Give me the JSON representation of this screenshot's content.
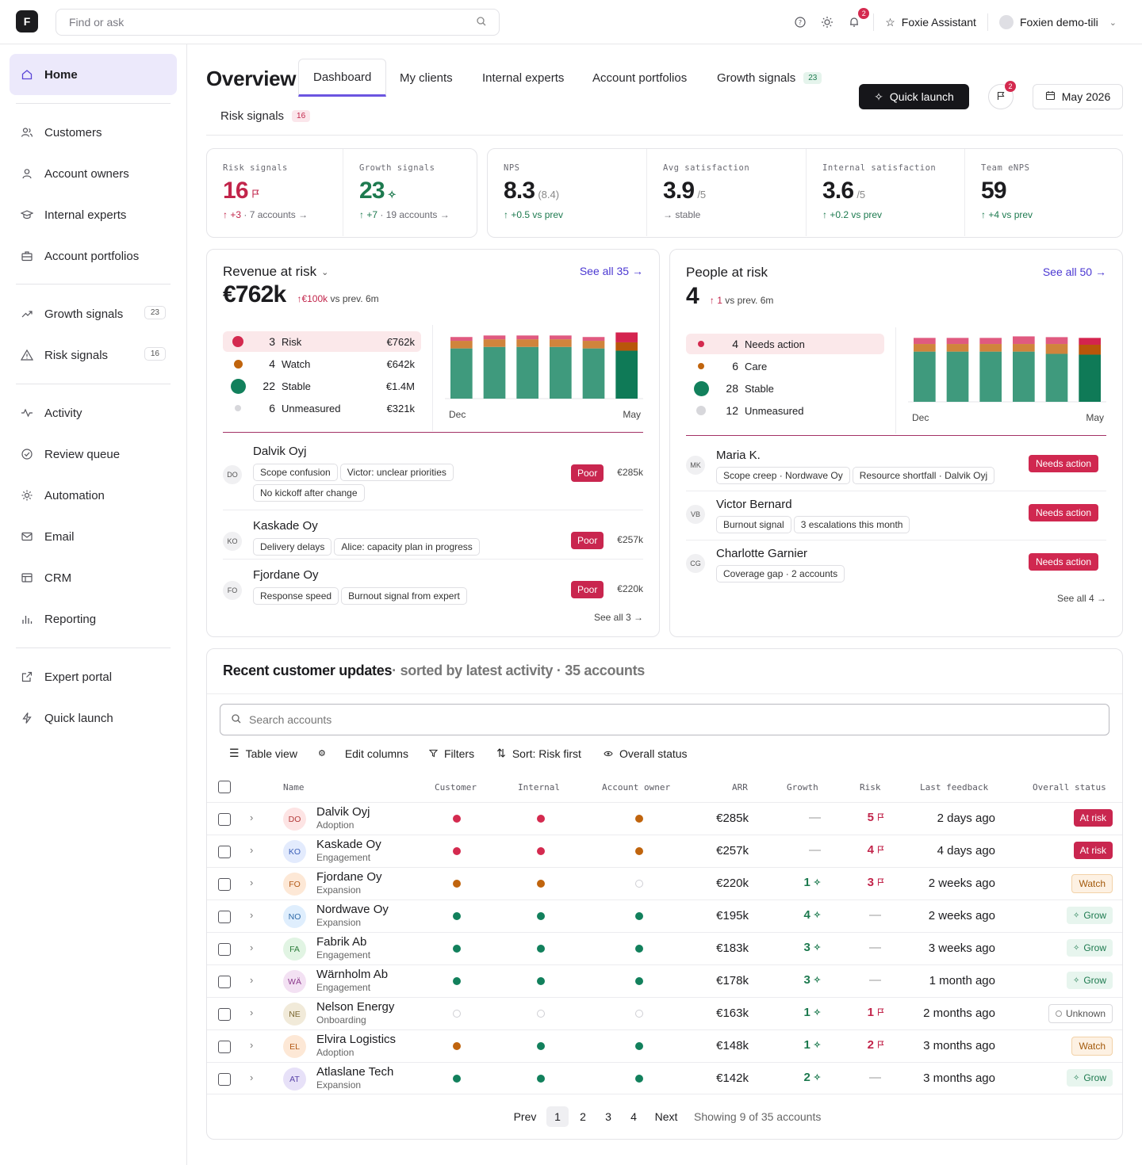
{
  "app": {
    "logo": "F",
    "search_placeholder": "Find or ask",
    "notif_count": "2",
    "assistant": "Foxie Assistant",
    "user": "Foxien demo-tili"
  },
  "sidebar": {
    "items": [
      {
        "label": "Home"
      },
      {
        "label": "Customers"
      },
      {
        "label": "Account owners"
      },
      {
        "label": "Internal experts"
      },
      {
        "label": "Account portfolios"
      },
      {
        "label": "Growth signals",
        "count": "23"
      },
      {
        "label": "Risk signals",
        "count": "16"
      },
      {
        "label": "Activity"
      },
      {
        "label": "Review queue"
      },
      {
        "label": "Automation"
      },
      {
        "label": "Email"
      },
      {
        "label": "CRM"
      },
      {
        "label": "Reporting"
      },
      {
        "label": "Expert portal"
      },
      {
        "label": "Quick launch"
      }
    ]
  },
  "header": {
    "title": "Overview",
    "tabs": [
      {
        "label": "Dashboard"
      },
      {
        "label": "My clients"
      },
      {
        "label": "Internal experts"
      },
      {
        "label": "Account portfolios"
      },
      {
        "label": "Growth signals",
        "count": "23"
      },
      {
        "label": "Risk signals",
        "count": "16"
      }
    ],
    "quick_launch": "Quick launch",
    "flag_count": "2",
    "date": "May 2026"
  },
  "kpis": [
    {
      "label": "Risk signals",
      "value": "16",
      "delta": "+3",
      "sub": "· 7 accounts →"
    },
    {
      "label": "Growth signals",
      "value": "23",
      "delta": "+7",
      "sub": "· 19 accounts →"
    },
    {
      "label": "NPS",
      "value": "8.3",
      "extra": "(8.4)",
      "sub": "+0.5 vs prev"
    },
    {
      "label": "Avg satisfaction",
      "value": "3.9",
      "extra": "/5",
      "sub": "→ stable"
    },
    {
      "label": "Internal satisfaction",
      "value": "3.6",
      "extra": "/5",
      "sub": "+0.2 vs prev"
    },
    {
      "label": "Team eNPS",
      "value": "59",
      "sub": "+4 vs prev"
    }
  ],
  "revenue": {
    "title": "Revenue at risk",
    "see_all": "See all 35 →",
    "value": "€762k",
    "delta": "€100k",
    "delta_sub": "vs prev. 6m",
    "legend": [
      {
        "count": "3",
        "label": "Risk",
        "value": "€762k",
        "color": "#d42a4f"
      },
      {
        "count": "4",
        "label": "Watch",
        "value": "€642k",
        "color": "#c0640d"
      },
      {
        "count": "22",
        "label": "Stable",
        "value": "€1.4M",
        "color": "#12805c"
      },
      {
        "count": "6",
        "label": "Unmeasured",
        "value": "€321k",
        "color": "#d7d7db"
      }
    ],
    "chart_data": {
      "type": "bar",
      "categories": [
        "Dec",
        "Jan",
        "Feb",
        "Mar",
        "Apr",
        "May"
      ],
      "x_labels": [
        "Dec",
        "May"
      ],
      "series": [
        {
          "name": "Stable",
          "color": "#3f9a7d",
          "values": [
            66,
            68,
            68,
            68,
            66,
            63
          ]
        },
        {
          "name": "Watch",
          "color": "#d0843c",
          "values": [
            10,
            10,
            10,
            10,
            10,
            11
          ]
        },
        {
          "name": "Risk",
          "color": "#e05a80",
          "values": [
            5,
            5,
            5,
            5,
            5,
            13
          ]
        }
      ]
    },
    "accounts": [
      {
        "initials": "DO",
        "name": "Dalvik Oyj",
        "tags": [
          "Scope confusion",
          "Victor: unclear priorities",
          "No kickoff after change"
        ],
        "status": "Poor",
        "value": "€285k"
      },
      {
        "initials": "KO",
        "name": "Kaskade Oy",
        "tags": [
          "Delivery delays",
          "Alice: capacity plan in progress"
        ],
        "status": "Poor",
        "value": "€257k"
      },
      {
        "initials": "FO",
        "name": "Fjordane Oy",
        "tags": [
          "Response speed",
          "Burnout signal from expert"
        ],
        "status": "Poor",
        "value": "€220k"
      }
    ],
    "footer": "See all 3 →"
  },
  "people": {
    "title": "People at risk",
    "see_all": "See all 50 →",
    "value": "4",
    "delta": "1",
    "delta_sub": "vs prev. 6m",
    "legend": [
      {
        "count": "4",
        "label": "Needs action",
        "color": "#d42a4f"
      },
      {
        "count": "6",
        "label": "Care",
        "color": "#c0640d"
      },
      {
        "count": "28",
        "label": "Stable",
        "color": "#12805c"
      },
      {
        "count": "12",
        "label": "Unmeasured",
        "color": "#d7d7db"
      }
    ],
    "chart_data": {
      "type": "bar",
      "categories": [
        "Dec",
        "Jan",
        "Feb",
        "Mar",
        "Apr",
        "May"
      ],
      "x_labels": [
        "Dec",
        "May"
      ],
      "series": [
        {
          "name": "Stable",
          "color": "#3f9a7d",
          "values": [
            66,
            66,
            66,
            66,
            63,
            62
          ]
        },
        {
          "name": "Care",
          "color": "#d0843c",
          "values": [
            10,
            10,
            10,
            10,
            13,
            13
          ]
        },
        {
          "name": "Needs action",
          "color": "#e05a80",
          "values": [
            8,
            8,
            8,
            10,
            9,
            9
          ]
        }
      ]
    },
    "persons": [
      {
        "initials": "MK",
        "name": "Maria K.",
        "tags": [
          "Scope creep · Nordwave Oy",
          "Resource shortfall · Dalvik Oyj"
        ],
        "status": "Needs action"
      },
      {
        "initials": "VB",
        "name": "Victor Bernard",
        "tags": [
          "Burnout signal",
          "3 escalations this month"
        ],
        "status": "Needs action"
      },
      {
        "initials": "CG",
        "name": "Charlotte Garnier",
        "tags": [
          "Coverage gap · 2 accounts"
        ],
        "status": "Needs action"
      }
    ],
    "footer": "See all 4 →"
  },
  "updates": {
    "title": "Recent customer updates",
    "subtitle": "· sorted by latest activity · 35 accounts",
    "search_placeholder": "Search accounts",
    "toolbar": {
      "view": "Table view",
      "edit": "Edit columns",
      "filters": "Filters",
      "sort": "Sort: Risk first",
      "status": "Overall status"
    },
    "columns": [
      "Name",
      "Customer",
      "Internal",
      "Account owner",
      "ARR",
      "Growth",
      "Risk",
      "Last feedback",
      "Overall status"
    ],
    "rows": [
      {
        "initials": "DO",
        "avbg": "#fde4e4",
        "avfg": "#b33a3a",
        "name": "Dalvik Oyj",
        "stage": "Adoption",
        "c": "r",
        "i": "r",
        "o": "o",
        "arr": "€285k",
        "growth": "—",
        "risk": "5",
        "last": "2 days ago",
        "status": "At risk",
        "st": "risk"
      },
      {
        "initials": "KO",
        "avbg": "#e3ebfd",
        "avfg": "#3b5fb8",
        "name": "Kaskade Oy",
        "stage": "Engagement",
        "c": "r",
        "i": "r",
        "o": "o",
        "arr": "€257k",
        "growth": "—",
        "risk": "4",
        "last": "4 days ago",
        "status": "At risk",
        "st": "risk"
      },
      {
        "initials": "FO",
        "avbg": "#fde8d6",
        "avfg": "#b35a18",
        "name": "Fjordane Oy",
        "stage": "Expansion",
        "c": "o",
        "i": "o",
        "o": "e",
        "arr": "€220k",
        "growth": "1",
        "risk": "3",
        "last": "2 weeks ago",
        "status": "Watch",
        "st": "watch"
      },
      {
        "initials": "NO",
        "avbg": "#dfeefd",
        "avfg": "#2f6aa8",
        "name": "Nordwave Oy",
        "stage": "Expansion",
        "c": "g",
        "i": "g",
        "o": "g",
        "arr": "€195k",
        "growth": "4",
        "risk": "—",
        "last": "2 weeks ago",
        "status": "Grow",
        "st": "grow"
      },
      {
        "initials": "FA",
        "avbg": "#e1f4e3",
        "avfg": "#2e7d3c",
        "name": "Fabrik Ab",
        "stage": "Engagement",
        "c": "g",
        "i": "g",
        "o": "g",
        "arr": "€183k",
        "growth": "3",
        "risk": "—",
        "last": "3 weeks ago",
        "status": "Grow",
        "st": "grow"
      },
      {
        "initials": "WÄ",
        "avbg": "#f3e1f3",
        "avfg": "#8c3a8c",
        "name": "Wärnholm Ab",
        "stage": "Engagement",
        "c": "g",
        "i": "g",
        "o": "g",
        "arr": "€178k",
        "growth": "3",
        "risk": "—",
        "last": "1 month ago",
        "status": "Grow",
        "st": "grow"
      },
      {
        "initials": "NE",
        "avbg": "#f1ead9",
        "avfg": "#7a6630",
        "name": "Nelson Energy",
        "stage": "Onboarding",
        "c": "e",
        "i": "e",
        "o": "e",
        "arr": "€163k",
        "growth": "1",
        "risk": "1",
        "last": "2 months ago",
        "status": "Unknown",
        "st": "unk"
      },
      {
        "initials": "EL",
        "avbg": "#fde8d6",
        "avfg": "#b35a18",
        "name": "Elvira Logistics",
        "stage": "Adoption",
        "c": "o",
        "i": "g",
        "o": "g",
        "arr": "€148k",
        "growth": "1",
        "risk": "2",
        "last": "3 months ago",
        "status": "Watch",
        "st": "watch"
      },
      {
        "initials": "AT",
        "avbg": "#e7e1f8",
        "avfg": "#5b45a8",
        "name": "Atlaslane Tech",
        "stage": "Expansion",
        "c": "g",
        "i": "g",
        "o": "g",
        "arr": "€142k",
        "growth": "2",
        "risk": "—",
        "last": "3 months ago",
        "status": "Grow",
        "st": "grow"
      }
    ],
    "pagination": {
      "prev": "Prev",
      "pages": [
        "1",
        "2",
        "3",
        "4"
      ],
      "next": "Next",
      "showing": "Showing 9 of 35 accounts"
    }
  }
}
